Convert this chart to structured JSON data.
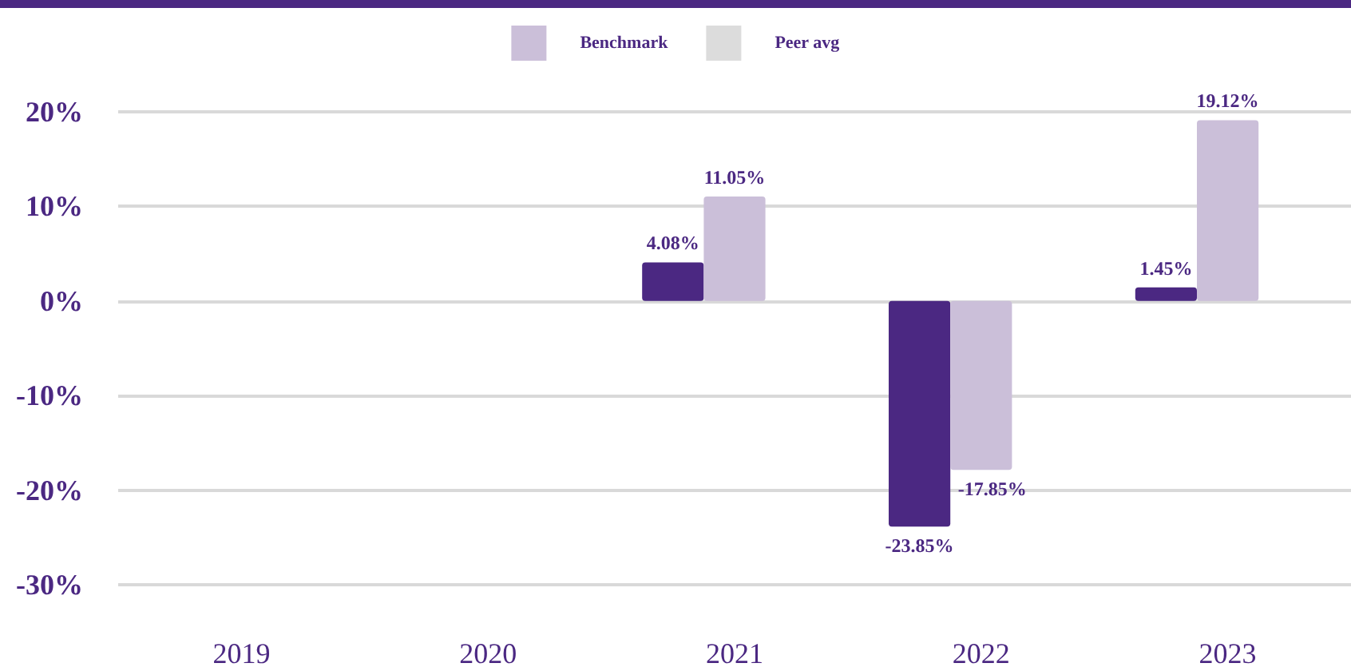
{
  "chart_data": {
    "type": "bar",
    "categories": [
      "2019",
      "2020",
      "2021",
      "2022",
      "2023"
    ],
    "series": [
      {
        "color": "#4b2882",
        "values": [
          null,
          null,
          4.08,
          -23.85,
          1.45
        ],
        "value_labels": [
          null,
          null,
          "4.08%",
          "-23.85%",
          "1.45%"
        ]
      },
      {
        "name": "Benchmark",
        "color": "#cbbfd9",
        "values": [
          null,
          null,
          11.05,
          -17.85,
          19.12
        ],
        "value_labels": [
          null,
          null,
          "11.05%",
          "-17.85%",
          "19.12%"
        ]
      },
      {
        "name": "Peer avg",
        "color": "#dcdcdc",
        "values": [
          null,
          null,
          null,
          null,
          null
        ]
      }
    ],
    "ylim": [
      -30,
      20
    ],
    "yticks": [
      {
        "value": -30,
        "label": "-30%"
      },
      {
        "value": -20,
        "label": "-20%"
      },
      {
        "value": -10,
        "label": "-10%"
      },
      {
        "value": 0,
        "label": "0%"
      },
      {
        "value": 10,
        "label": "10%"
      },
      {
        "value": 20,
        "label": "20%"
      }
    ],
    "grid": "y",
    "legend": "top"
  }
}
